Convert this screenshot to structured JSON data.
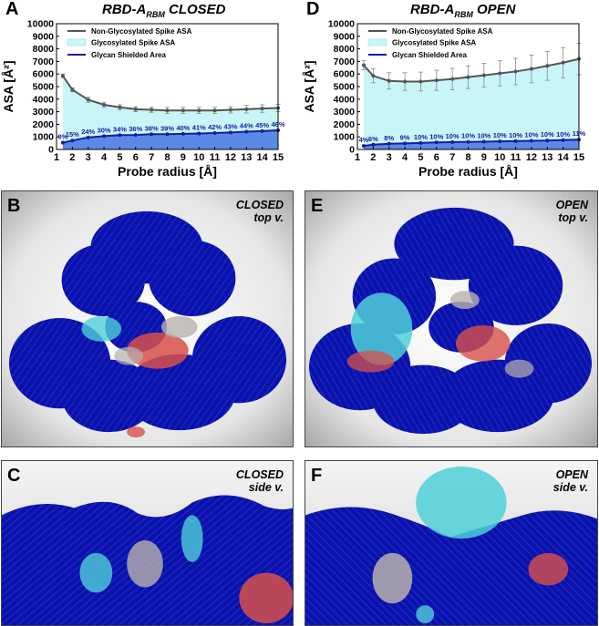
{
  "panels": {
    "a": {
      "letter": "A",
      "title": "RBD-A",
      "title_sub": "RBM",
      "title_suffix": " CLOSED"
    },
    "d": {
      "letter": "D",
      "title": "RBD-A",
      "title_sub": "RBM",
      "title_suffix": " OPEN"
    },
    "b": {
      "letter": "B",
      "label1": "CLOSED",
      "label2": "top v."
    },
    "c": {
      "letter": "C",
      "label1": "CLOSED",
      "label2": "side v."
    },
    "e": {
      "letter": "E",
      "label1": "OPEN",
      "label2": "top v."
    },
    "f": {
      "letter": "F",
      "label1": "OPEN",
      "label2": "side v."
    }
  },
  "colors": {
    "nonglyc_line": "#555555",
    "glyc_fill": "#c8f6f8",
    "shield_fill": "#5b8ae6",
    "shield_line": "#1a1aa0",
    "pct_text": "#1a1aa0",
    "glycan_blue": "#0a14b4",
    "protein_cyan": "#4fd0d8",
    "protein_red": "#d8504a",
    "protein_grey": "#b8b2ae"
  },
  "chart_data": [
    {
      "type": "line",
      "title": "RBD-A_RBM CLOSED",
      "xlabel": "Probe radius [Å]",
      "ylabel": "ASA [Å²]",
      "xlim": [
        1,
        15
      ],
      "ylim": [
        0,
        10000
      ],
      "xticks": [
        1,
        2,
        3,
        4,
        5,
        6,
        7,
        8,
        9,
        10,
        11,
        12,
        13,
        14,
        15
      ],
      "yticks": [
        0,
        1000,
        2000,
        3000,
        4000,
        5000,
        6000,
        7000,
        8000,
        9000,
        10000
      ],
      "legend_position": "top",
      "legend": [
        "Non-Glycosylated Spike ASA",
        "Glycosylated Spike ASA",
        "Glycan Shielded Area"
      ],
      "x": [
        1.4,
        2,
        3,
        4,
        5,
        6,
        7,
        8,
        9,
        10,
        11,
        12,
        13,
        14,
        15
      ],
      "series": [
        {
          "name": "Non-Glycosylated Spike ASA",
          "values": [
            5850,
            4750,
            3950,
            3550,
            3350,
            3200,
            3150,
            3100,
            3100,
            3100,
            3100,
            3150,
            3200,
            3250,
            3300
          ],
          "error": [
            150,
            150,
            200,
            200,
            200,
            200,
            200,
            250,
            250,
            250,
            250,
            250,
            300,
            300,
            300
          ]
        },
        {
          "name": "Glycosylated Spike ASA",
          "values": [
            5850,
            4750,
            3950,
            3550,
            3350,
            3200,
            3150,
            3100,
            3100,
            3100,
            3100,
            3150,
            3200,
            3250,
            3300
          ]
        },
        {
          "name": "Glycan Shielded Area",
          "values": [
            530,
            710,
            950,
            1060,
            1140,
            1150,
            1210,
            1210,
            1240,
            1270,
            1300,
            1350,
            1410,
            1460,
            1520
          ]
        }
      ],
      "annotations": [
        "9%",
        "15%",
        "24%",
        "30%",
        "34%",
        "36%",
        "38%",
        "39%",
        "40%",
        "41%",
        "42%",
        "43%",
        "44%",
        "45%",
        "46%"
      ]
    },
    {
      "type": "line",
      "title": "RBD-A_RBM OPEN",
      "xlabel": "Probe radius [Å]",
      "ylabel": "ASA [Å²]",
      "xlim": [
        1,
        15
      ],
      "ylim": [
        0,
        10000
      ],
      "xticks": [
        1,
        2,
        3,
        4,
        5,
        6,
        7,
        8,
        9,
        10,
        11,
        12,
        13,
        14,
        15
      ],
      "yticks": [
        0,
        1000,
        2000,
        3000,
        4000,
        5000,
        6000,
        7000,
        8000,
        9000,
        10000
      ],
      "legend_position": "top",
      "legend": [
        "Non-Glycosylated Spike ASA",
        "Glycosylated Spike ASA",
        "Glycan Shielded Area"
      ],
      "x": [
        1.4,
        2,
        3,
        4,
        5,
        6,
        7,
        8,
        9,
        10,
        11,
        12,
        13,
        14,
        15
      ],
      "series": [
        {
          "name": "Non-Glycosylated Spike ASA",
          "values": [
            6700,
            5850,
            5450,
            5400,
            5400,
            5500,
            5600,
            5750,
            5900,
            6050,
            6200,
            6400,
            6650,
            6900,
            7200
          ],
          "error": [
            350,
            550,
            650,
            700,
            750,
            800,
            850,
            900,
            950,
            1000,
            1050,
            1100,
            1150,
            1200,
            1250
          ]
        },
        {
          "name": "Glycosylated Spike ASA",
          "values": [
            6700,
            5850,
            5450,
            5400,
            5400,
            5500,
            5600,
            5750,
            5900,
            6050,
            6200,
            6400,
            6650,
            6900,
            7200
          ]
        },
        {
          "name": "Glycan Shielded Area",
          "values": [
            280,
            380,
            450,
            480,
            520,
            560,
            580,
            600,
            620,
            640,
            660,
            690,
            710,
            740,
            780
          ]
        }
      ],
      "annotations": [
        "4%",
        "6%",
        "8%",
        "9%",
        "10%",
        "10%",
        "10%",
        "10%",
        "10%",
        "10%",
        "10%",
        "10%",
        "10%",
        "10%",
        "11%"
      ]
    }
  ]
}
